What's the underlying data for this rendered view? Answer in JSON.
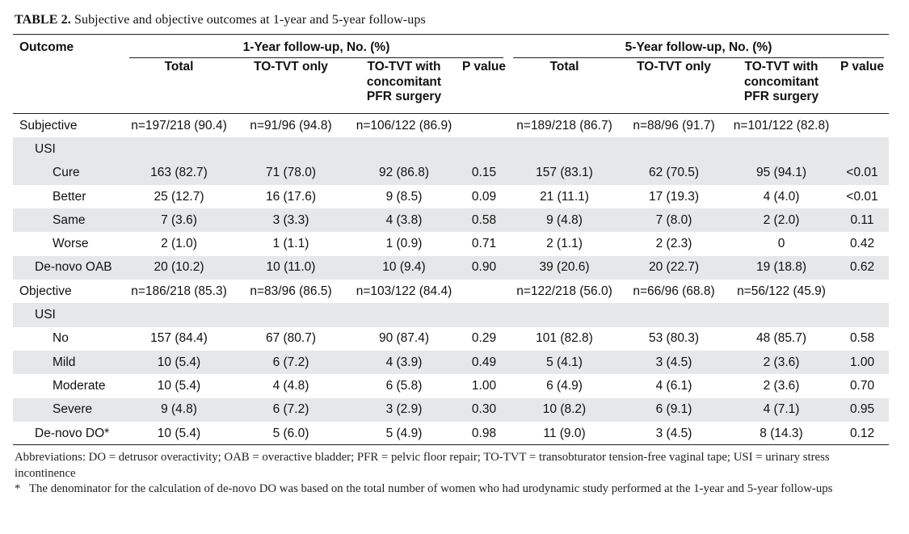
{
  "caption": {
    "label": "TABLE 2.",
    "text": "Subjective and objective outcomes at 1-year and 5-year follow-ups"
  },
  "header": {
    "outcome": "Outcome",
    "group1": "1-Year follow-up, No. (%)",
    "group2": "5-Year follow-up, No. (%)",
    "cols": [
      "Total",
      "TO-TVT only",
      "TO-TVT with concomitant PFR surgery",
      "P value",
      "Total",
      "TO-TVT only",
      "TO-TVT with concomitant PFR surgery",
      "P value"
    ]
  },
  "rows": [
    {
      "label": "Subjective",
      "indent": 0,
      "shade": false,
      "cells": [
        "n=197/218 (90.4)",
        "n=91/96 (94.8)",
        "n=106/122 (86.9)",
        "",
        "n=189/218 (86.7)",
        "n=88/96 (91.7)",
        "n=101/122 (82.8)",
        ""
      ]
    },
    {
      "label": "USI",
      "indent": 1,
      "shade": true,
      "cells": [
        "",
        "",
        "",
        "",
        "",
        "",
        "",
        ""
      ]
    },
    {
      "label": "Cure",
      "indent": 2,
      "shade": true,
      "cells": [
        "163 (82.7)",
        "71 (78.0)",
        "92 (86.8)",
        "0.15",
        "157 (83.1)",
        "62 (70.5)",
        "95 (94.1)",
        "<0.01"
      ]
    },
    {
      "label": "Better",
      "indent": 2,
      "shade": false,
      "cells": [
        "25 (12.7)",
        "16 (17.6)",
        "9 (8.5)",
        "0.09",
        "21 (11.1)",
        "17 (19.3)",
        "4 (4.0)",
        "<0.01"
      ]
    },
    {
      "label": "Same",
      "indent": 2,
      "shade": true,
      "cells": [
        "7 (3.6)",
        "3 (3.3)",
        "4 (3.8)",
        "0.58",
        "9 (4.8)",
        "7 (8.0)",
        "2 (2.0)",
        "0.11"
      ]
    },
    {
      "label": "Worse",
      "indent": 2,
      "shade": false,
      "cells": [
        "2 (1.0)",
        "1 (1.1)",
        "1 (0.9)",
        "0.71",
        "2 (1.1)",
        "2 (2.3)",
        "0",
        "0.42"
      ]
    },
    {
      "label": "De-novo OAB",
      "indent": 1,
      "shade": true,
      "cells": [
        "20 (10.2)",
        "10 (11.0)",
        "10 (9.4)",
        "0.90",
        "39 (20.6)",
        "20 (22.7)",
        "19 (18.8)",
        "0.62"
      ]
    },
    {
      "label": "Objective",
      "indent": 0,
      "shade": false,
      "cells": [
        "n=186/218 (85.3)",
        "n=83/96 (86.5)",
        "n=103/122 (84.4)",
        "",
        "n=122/218 (56.0)",
        "n=66/96 (68.8)",
        "n=56/122 (45.9)",
        ""
      ]
    },
    {
      "label": "USI",
      "indent": 1,
      "shade": true,
      "cells": [
        "",
        "",
        "",
        "",
        "",
        "",
        "",
        ""
      ]
    },
    {
      "label": "No",
      "indent": 2,
      "shade": false,
      "cells": [
        "157 (84.4)",
        "67 (80.7)",
        "90 (87.4)",
        "0.29",
        "101 (82.8)",
        "53 (80.3)",
        "48 (85.7)",
        "0.58"
      ]
    },
    {
      "label": "Mild",
      "indent": 2,
      "shade": true,
      "cells": [
        "10 (5.4)",
        "6 (7.2)",
        "4 (3.9)",
        "0.49",
        "5 (4.1)",
        "3 (4.5)",
        "2 (3.6)",
        "1.00"
      ]
    },
    {
      "label": "Moderate",
      "indent": 2,
      "shade": false,
      "cells": [
        "10 (5.4)",
        "4 (4.8)",
        "6 (5.8)",
        "1.00",
        "6 (4.9)",
        "4 (6.1)",
        "2 (3.6)",
        "0.70"
      ]
    },
    {
      "label": "Severe",
      "indent": 2,
      "shade": true,
      "cells": [
        "9 (4.8)",
        "6 (7.2)",
        "3 (2.9)",
        "0.30",
        "10 (8.2)",
        "6 (9.1)",
        "4 (7.1)",
        "0.95"
      ]
    },
    {
      "label": "De-novo DO*",
      "indent": 1,
      "shade": false,
      "cells": [
        "10 (5.4)",
        "5 (6.0)",
        "5 (4.9)",
        "0.98",
        "11 (9.0)",
        "3 (4.5)",
        "8 (14.3)",
        "0.12"
      ]
    }
  ],
  "notes": {
    "abbreviations": "Abbreviations: DO = detrusor overactivity; OAB = overactive bladder; PFR = pelvic floor repair; TO-TVT = transobturator tension-free vaginal tape; USI = urinary stress incontinence",
    "footnote_mark": "*",
    "footnote": "The denominator for the calculation of de-novo DO was based on the total number of women who had urodynamic study performed at the 1-year and 5-year follow-ups"
  }
}
